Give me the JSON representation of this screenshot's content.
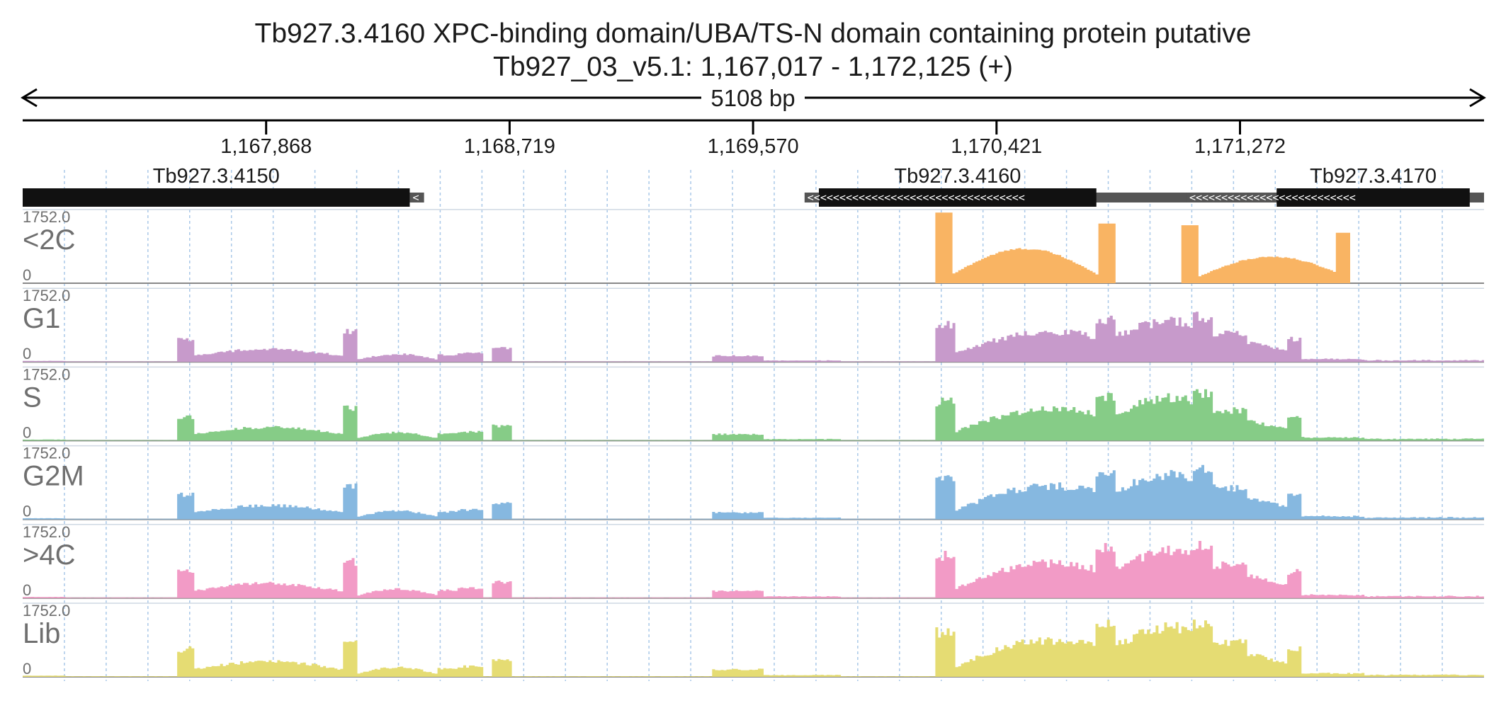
{
  "header": {
    "title_line1": "Tb927.3.4160  XPC-binding domain/UBA/TS-N domain containing protein  putative",
    "title_line2": "Tb927_03_v5.1: 1,167,017 - 1,172,125 (+)"
  },
  "chart_data": {
    "type": "area",
    "chromosome": "Tb927_03_v5.1",
    "strand": "+",
    "xlim": [
      1167017,
      1172125
    ],
    "span_label": "5108 bp",
    "x_ticks": [
      1167868,
      1168719,
      1169570,
      1170421,
      1171272
    ],
    "x_tick_labels": [
      "1,167,868",
      "1,168,719",
      "1,169,570",
      "1,170,421",
      "1,171,272"
    ],
    "genes": [
      {
        "name": "Tb927.3.4150",
        "cds": [
          1167017,
          1168370
        ],
        "utr": [
          1168370,
          1168420
        ],
        "strand": "-"
      },
      {
        "name": "Tb927.3.4160",
        "cds": [
          1169800,
          1170770
        ],
        "utr": [
          1169750,
          1171100
        ],
        "strand": "-"
      },
      {
        "name": "Tb927.3.4170",
        "cds": [
          1171400,
          1172075
        ],
        "utr": [
          1171085,
          1172125
        ],
        "strand": "-"
      }
    ],
    "ylim": [
      0,
      1752.0
    ],
    "ymax_label": "1752.0",
    "ymin_label": "0",
    "tracks": [
      {
        "name": "<2C",
        "color": "#f9b463",
        "profile": "sparse"
      },
      {
        "name": "G1",
        "color": "#c79acb",
        "profile": "full"
      },
      {
        "name": "S",
        "color": "#86cc87",
        "profile": "full"
      },
      {
        "name": "G2M",
        "color": "#86b8e0",
        "profile": "full"
      },
      {
        "name": ">4C",
        "color": "#f29bc6",
        "profile": "full"
      },
      {
        "name": "Lib",
        "color": "#e5dc73",
        "profile": "full"
      }
    ],
    "clip_color": "#d0142c"
  }
}
